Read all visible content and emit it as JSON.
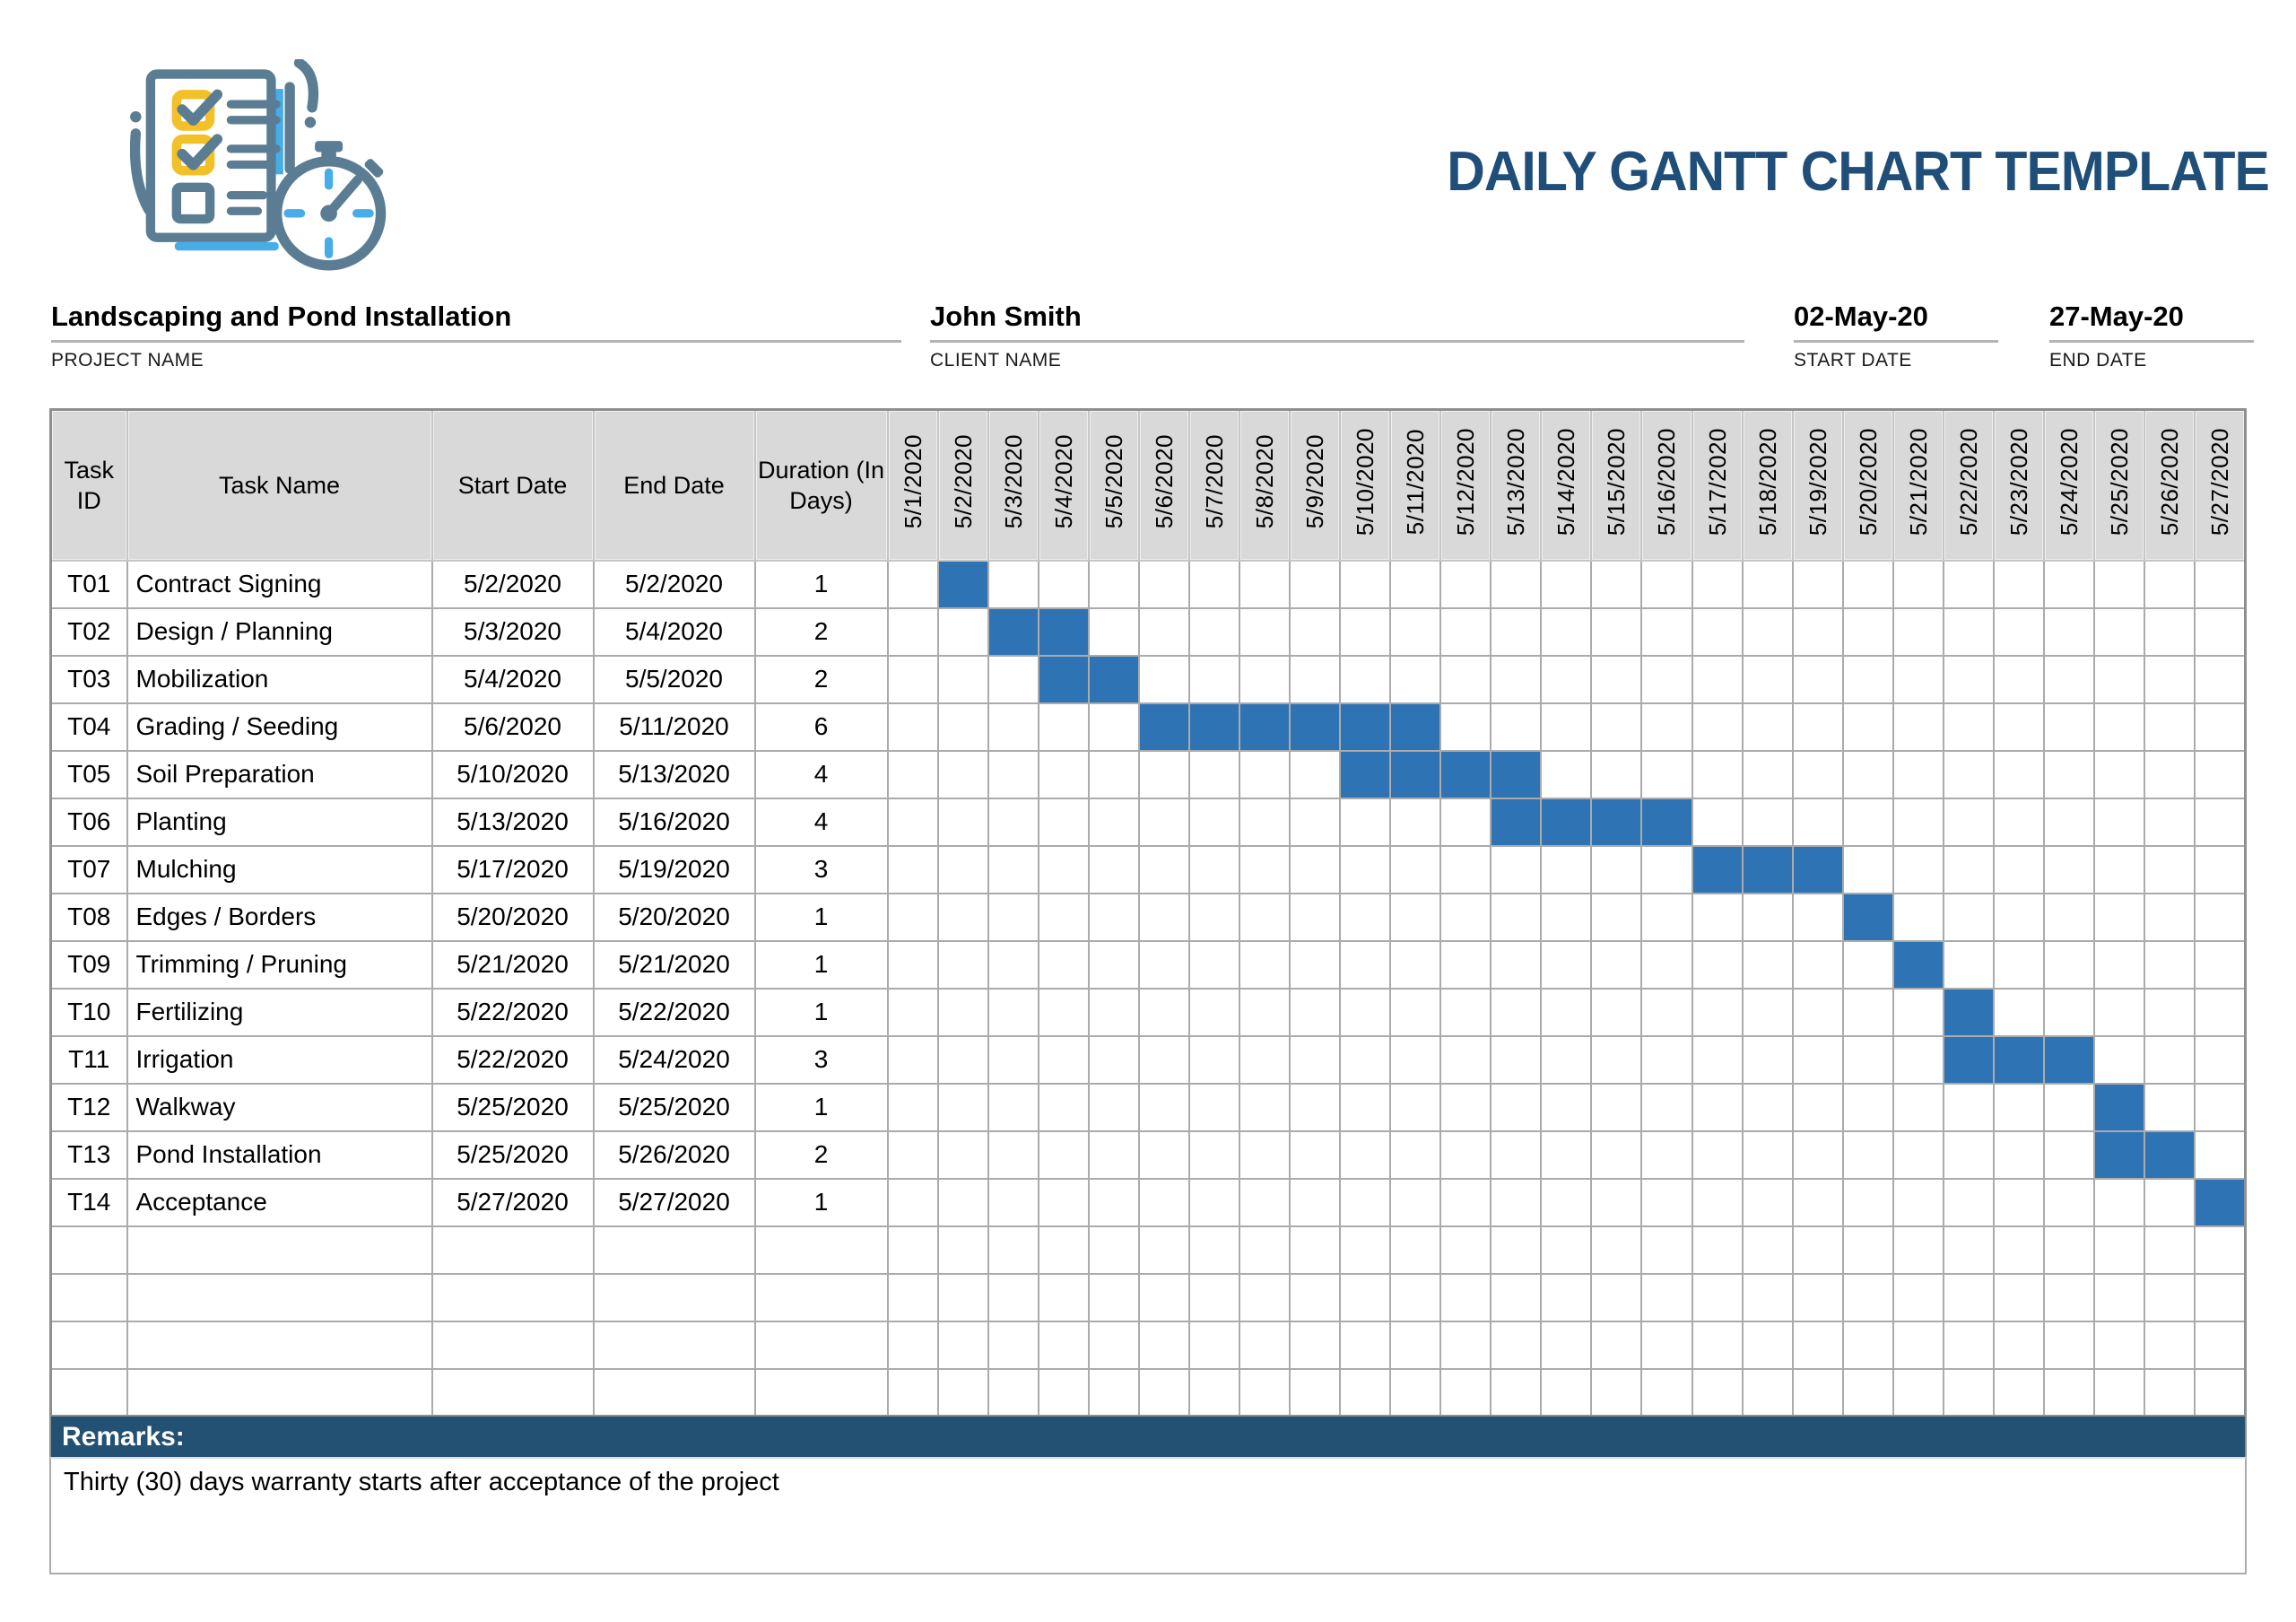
{
  "header": {
    "title": "DAILY GANTT CHART TEMPLATE"
  },
  "project_info": {
    "project": {
      "value": "Landscaping and Pond Installation",
      "label": "PROJECT NAME"
    },
    "client": {
      "value": "John Smith",
      "label": "CLIENT NAME"
    },
    "start": {
      "value": "02-May-20",
      "label": "START DATE"
    },
    "end": {
      "value": "27-May-20",
      "label": "END DATE"
    }
  },
  "chart_data": {
    "type": "gantt",
    "table_columns": [
      "Task ID",
      "Task Name",
      "Start Date",
      "End Date",
      "Duration (In Days)"
    ],
    "date_columns": [
      "5/1/2020",
      "5/2/2020",
      "5/3/2020",
      "5/4/2020",
      "5/5/2020",
      "5/6/2020",
      "5/7/2020",
      "5/8/2020",
      "5/9/2020",
      "5/10/2020",
      "5/11/2020",
      "5/12/2020",
      "5/13/2020",
      "5/14/2020",
      "5/15/2020",
      "5/16/2020",
      "5/17/2020",
      "5/18/2020",
      "5/19/2020",
      "5/20/2020",
      "5/21/2020",
      "5/22/2020",
      "5/23/2020",
      "5/24/2020",
      "5/25/2020",
      "5/26/2020",
      "5/27/2020"
    ],
    "axis_range": [
      "5/1/2020",
      "5/27/2020"
    ],
    "tasks": [
      {
        "id": "T01",
        "name": "Contract Signing",
        "start": "5/2/2020",
        "end": "5/2/2020",
        "duration": 1
      },
      {
        "id": "T02",
        "name": "Design / Planning",
        "start": "5/3/2020",
        "end": "5/4/2020",
        "duration": 2
      },
      {
        "id": "T03",
        "name": "Mobilization",
        "start": "5/4/2020",
        "end": "5/5/2020",
        "duration": 2
      },
      {
        "id": "T04",
        "name": "Grading / Seeding",
        "start": "5/6/2020",
        "end": "5/11/2020",
        "duration": 6
      },
      {
        "id": "T05",
        "name": "Soil Preparation",
        "start": "5/10/2020",
        "end": "5/13/2020",
        "duration": 4
      },
      {
        "id": "T06",
        "name": "Planting",
        "start": "5/13/2020",
        "end": "5/16/2020",
        "duration": 4
      },
      {
        "id": "T07",
        "name": "Mulching",
        "start": "5/17/2020",
        "end": "5/19/2020",
        "duration": 3
      },
      {
        "id": "T08",
        "name": "Edges / Borders",
        "start": "5/20/2020",
        "end": "5/20/2020",
        "duration": 1
      },
      {
        "id": "T09",
        "name": "Trimming / Pruning",
        "start": "5/21/2020",
        "end": "5/21/2020",
        "duration": 1
      },
      {
        "id": "T10",
        "name": "Fertilizing",
        "start": "5/22/2020",
        "end": "5/22/2020",
        "duration": 1
      },
      {
        "id": "T11",
        "name": "Irrigation",
        "start": "5/22/2020",
        "end": "5/24/2020",
        "duration": 3
      },
      {
        "id": "T12",
        "name": "Walkway",
        "start": "5/25/2020",
        "end": "5/25/2020",
        "duration": 1
      },
      {
        "id": "T13",
        "name": "Pond Installation",
        "start": "5/25/2020",
        "end": "5/26/2020",
        "duration": 2
      },
      {
        "id": "T14",
        "name": "Acceptance",
        "start": "5/27/2020",
        "end": "5/27/2020",
        "duration": 1
      }
    ],
    "empty_rows": 4,
    "bar_color": "#2E74B5",
    "grid_on": true,
    "legend_position": "none"
  },
  "remarks": {
    "label": "Remarks:",
    "text": "Thirty (30) days warranty starts after acceptance of the project"
  },
  "colors": {
    "title": "#1F4E79",
    "remarks_bar": "#235173",
    "header_fill": "#D9D9D9",
    "bar": "#2E74B5",
    "grid_line": "#ABABAB",
    "logo_slate": "#5B7D93",
    "logo_yellow": "#F2C028",
    "logo_light_blue": "#47ADE9"
  }
}
